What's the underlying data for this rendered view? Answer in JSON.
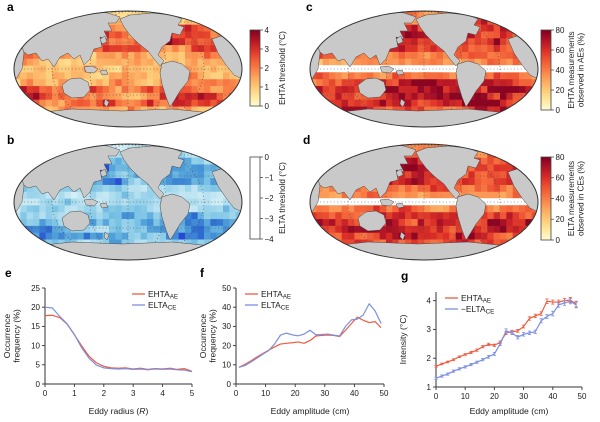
{
  "panels": {
    "a": "a",
    "b": "b",
    "c": "c",
    "d": "d",
    "e": "e",
    "f": "f",
    "g": "g"
  },
  "colors": {
    "land": "#c9c9c9",
    "land_outline": "#4a4a4a",
    "map_outline": "#333333",
    "graticule": "#444444",
    "ehta_line": "#ee5c40",
    "elta_line": "#7c8fe2",
    "axis": "#333333",
    "tick_text": "#1a1a1a",
    "red_palette": [
      "#fffcd4",
      "#fee89c",
      "#fdc977",
      "#fca55d",
      "#f87b44",
      "#ee5634",
      "#d92e27",
      "#b01326",
      "#7f0022"
    ],
    "blue_palette": [
      "#ffffff",
      "#d8f0f7",
      "#abdcee",
      "#79c2e4",
      "#4b9ad8",
      "#2f6ecf",
      "#2440d8"
    ]
  },
  "chart_data": [
    {
      "panel": "a",
      "type": "heatmap",
      "subtype": "global-ocean-map",
      "projection": "mollweide",
      "colorbar_label_lines": [
        "EHTA threshold (°C)"
      ],
      "colorbar_ticks": [
        "4",
        "3",
        "2",
        "1",
        "0"
      ],
      "range": [
        0,
        4
      ],
      "palette": "red",
      "seed": 11,
      "kind": "thresh",
      "equator_gap": false,
      "lat_profile": [
        0.3,
        0.4,
        0.58,
        0.72,
        0.78,
        0.7,
        0.52,
        0.4,
        0.38,
        0.46,
        0.58,
        0.7,
        0.76,
        0.7,
        0.56,
        0.42,
        0.32
      ],
      "patches": [
        {
          "r0": 3,
          "r1": 5,
          "c0": 8,
          "c1": 14,
          "add": 0.22
        },
        {
          "r0": 2,
          "r1": 4,
          "c0": 22,
          "c1": 26,
          "add": 0.18
        },
        {
          "r0": 11,
          "r1": 13,
          "c0": 25,
          "c1": 30,
          "add": 0.18
        },
        {
          "r0": 11,
          "r1": 13,
          "c0": 0,
          "c1": 4,
          "add": 0.12
        }
      ]
    },
    {
      "panel": "b",
      "type": "heatmap",
      "subtype": "global-ocean-map",
      "projection": "mollweide",
      "colorbar_label_lines": [
        "ELTA threshold (°C)"
      ],
      "colorbar_ticks": [
        "0",
        "−1",
        "−2",
        "−3",
        "−4"
      ],
      "range": [
        0,
        -4
      ],
      "palette": "blue",
      "seed": 22,
      "kind": "thresh",
      "equator_gap": false,
      "lat_profile": [
        0.3,
        0.4,
        0.58,
        0.72,
        0.78,
        0.7,
        0.52,
        0.4,
        0.38,
        0.46,
        0.58,
        0.7,
        0.76,
        0.7,
        0.56,
        0.42,
        0.32
      ],
      "patches": [
        {
          "r0": 3,
          "r1": 5,
          "c0": 8,
          "c1": 14,
          "add": 0.22
        },
        {
          "r0": 2,
          "r1": 4,
          "c0": 22,
          "c1": 26,
          "add": 0.18
        },
        {
          "r0": 11,
          "r1": 13,
          "c0": 25,
          "c1": 30,
          "add": 0.18
        },
        {
          "r0": 11,
          "r1": 13,
          "c0": 0,
          "c1": 4,
          "add": 0.12
        }
      ]
    },
    {
      "panel": "c",
      "type": "heatmap",
      "subtype": "global-ocean-map",
      "projection": "mollweide",
      "colorbar_label_lines": [
        "EHTA measurements",
        "observed in AEs (%)"
      ],
      "colorbar_ticks": [
        "80",
        "60",
        "40",
        "20",
        "0"
      ],
      "range": [
        0,
        80
      ],
      "palette": "red",
      "seed": 33,
      "kind": "pct",
      "equator_gap": true,
      "lat_profile": [
        0.5,
        0.6,
        0.72,
        0.82,
        0.82,
        0.72,
        0.58,
        0.4,
        0.3,
        0.55,
        0.68,
        0.8,
        0.84,
        0.8,
        0.72,
        0.62,
        0.52
      ],
      "patches": [
        {
          "r0": 2,
          "r1": 5,
          "c0": 6,
          "c1": 16,
          "add": 0.12
        },
        {
          "r0": 10,
          "r1": 13,
          "c0": 8,
          "c1": 30,
          "add": 0.1
        }
      ]
    },
    {
      "panel": "d",
      "type": "heatmap",
      "subtype": "global-ocean-map",
      "projection": "mollweide",
      "colorbar_label_lines": [
        "ELTA measurements",
        "observed in CEs (%)"
      ],
      "colorbar_ticks": [
        "80",
        "60",
        "40",
        "20",
        "0"
      ],
      "range": [
        0,
        80
      ],
      "palette": "red",
      "seed": 44,
      "kind": "pct",
      "equator_gap": true,
      "lat_profile": [
        0.5,
        0.6,
        0.72,
        0.82,
        0.82,
        0.72,
        0.58,
        0.4,
        0.3,
        0.55,
        0.68,
        0.8,
        0.84,
        0.8,
        0.72,
        0.62,
        0.52
      ],
      "patches": [
        {
          "r0": 2,
          "r1": 5,
          "c0": 6,
          "c1": 16,
          "add": 0.12
        },
        {
          "r0": 10,
          "r1": 13,
          "c0": 8,
          "c1": 30,
          "add": 0.1
        }
      ]
    },
    {
      "panel": "e",
      "type": "line",
      "xlabel_parts": [
        {
          "text": "Eddy radius ("
        },
        {
          "text": "R",
          "italic": true
        },
        {
          "text": ")"
        }
      ],
      "ylabel_lines": [
        "Occurrence",
        "frequency (%)"
      ],
      "xlim": [
        0,
        5
      ],
      "ylim": [
        0,
        25
      ],
      "xticks": [
        0,
        1,
        2,
        3,
        4,
        5
      ],
      "yticks": [
        0,
        5,
        10,
        15,
        20,
        25
      ],
      "legend_position": "top-right",
      "x": [
        0,
        0.25,
        0.5,
        0.75,
        1,
        1.25,
        1.5,
        1.75,
        2,
        2.25,
        2.5,
        2.75,
        3,
        3.25,
        3.5,
        3.75,
        4,
        4.25,
        4.5,
        4.75,
        5
      ],
      "series": [
        {
          "label_prefix": "",
          "label_main": "EHTA",
          "label_sub": "AE",
          "color": "ehta_line",
          "values": [
            17.8,
            17.9,
            17.3,
            15.6,
            12.8,
            9.9,
            7.2,
            5.5,
            4.6,
            4.2,
            4.1,
            4.2,
            3.9,
            4.1,
            3.8,
            4.0,
            3.9,
            4.1,
            3.8,
            4.0,
            3.3
          ]
        },
        {
          "label_prefix": "",
          "label_main": "ELTA",
          "label_sub": "CE",
          "color": "elta_line",
          "values": [
            20.0,
            19.8,
            17.6,
            15.7,
            12.9,
            9.4,
            6.7,
            4.9,
            4.2,
            4.0,
            3.9,
            4.0,
            3.8,
            3.9,
            3.7,
            3.9,
            3.8,
            3.9,
            3.7,
            3.6,
            3.2
          ]
        }
      ]
    },
    {
      "panel": "f",
      "type": "line",
      "xlabel_parts": [
        {
          "text": "Eddy amplitude (cm)"
        }
      ],
      "ylabel_lines": [
        "Occurrence",
        "frequency (%)"
      ],
      "xlim": [
        0,
        50
      ],
      "ylim": [
        0,
        50
      ],
      "xticks": [
        0,
        10,
        20,
        30,
        40,
        50
      ],
      "yticks": [
        0,
        10,
        20,
        30,
        40,
        50
      ],
      "legend_position": "top-left",
      "x": [
        1,
        3,
        5,
        7,
        9,
        11,
        13,
        15,
        17,
        19,
        21,
        23,
        25,
        27,
        29,
        31,
        33,
        35,
        37,
        39,
        41,
        43,
        45,
        47,
        49
      ],
      "series": [
        {
          "label_prefix": "",
          "label_main": "EHTA",
          "label_sub": "AE",
          "color": "ehta_line",
          "values": [
            8.7,
            10.2,
            12.0,
            14.0,
            15.8,
            17.6,
            19.3,
            20.8,
            21.2,
            21.5,
            21.9,
            21.2,
            22.6,
            25.0,
            25.3,
            25.5,
            25.3,
            24.7,
            28.0,
            31.5,
            34.8,
            33.2,
            32.0,
            32.5,
            29.3
          ]
        },
        {
          "label_prefix": "",
          "label_main": "ELTA",
          "label_sub": "CE",
          "color": "elta_line",
          "values": [
            8.7,
            9.6,
            11.4,
            13.4,
            15.4,
            17.4,
            20.8,
            25.4,
            26.5,
            25.6,
            25.1,
            26.0,
            28.0,
            25.6,
            25.8,
            26.0,
            25.5,
            25.0,
            30.0,
            33.4,
            33.8,
            36.0,
            41.8,
            38.0,
            31.5
          ]
        }
      ]
    },
    {
      "panel": "g",
      "type": "line",
      "xlabel_parts": [
        {
          "text": "Eddy amplitude (cm)"
        }
      ],
      "ylabel_lines": [
        "Intensity (°C)"
      ],
      "xlim": [
        0,
        50
      ],
      "ylim": [
        1,
        4.3
      ],
      "xticks": [
        0,
        10,
        20,
        30,
        40,
        50
      ],
      "yticks": [
        1,
        2,
        3,
        4
      ],
      "legend_position": "top-left",
      "x": [
        0,
        2,
        4,
        6,
        8,
        10,
        12,
        14,
        16,
        18,
        20,
        22,
        24,
        26,
        28,
        30,
        32,
        34,
        36,
        38,
        40,
        42,
        44,
        46,
        48
      ],
      "series": [
        {
          "label_prefix": "",
          "label_main": "EHTA",
          "label_sub": "AE",
          "color": "ehta_line",
          "values": [
            1.72,
            1.8,
            1.87,
            1.95,
            2.05,
            2.13,
            2.2,
            2.28,
            2.4,
            2.48,
            2.45,
            2.55,
            2.88,
            2.92,
            2.95,
            3.1,
            3.38,
            3.47,
            3.55,
            3.98,
            3.95,
            3.95,
            4.0,
            4.02,
            3.88
          ],
          "errors": [
            0.03,
            0.03,
            0.03,
            0.03,
            0.03,
            0.03,
            0.04,
            0.04,
            0.04,
            0.04,
            0.04,
            0.05,
            0.06,
            0.05,
            0.05,
            0.05,
            0.06,
            0.06,
            0.06,
            0.08,
            0.07,
            0.07,
            0.08,
            0.09,
            0.1
          ]
        },
        {
          "label_prefix": "−",
          "label_main": "ELTA",
          "label_sub": "CE",
          "color": "elta_line",
          "values": [
            1.3,
            1.38,
            1.45,
            1.55,
            1.63,
            1.7,
            1.78,
            1.86,
            1.95,
            2.05,
            2.15,
            2.5,
            2.95,
            2.88,
            2.73,
            2.83,
            2.88,
            2.92,
            3.3,
            3.45,
            3.55,
            3.85,
            3.92,
            3.98,
            3.85
          ],
          "errors": [
            0.04,
            0.04,
            0.04,
            0.04,
            0.04,
            0.04,
            0.04,
            0.04,
            0.04,
            0.05,
            0.05,
            0.06,
            0.07,
            0.06,
            0.06,
            0.06,
            0.06,
            0.06,
            0.07,
            0.07,
            0.08,
            0.08,
            0.08,
            0.09,
            0.1
          ]
        }
      ]
    }
  ]
}
